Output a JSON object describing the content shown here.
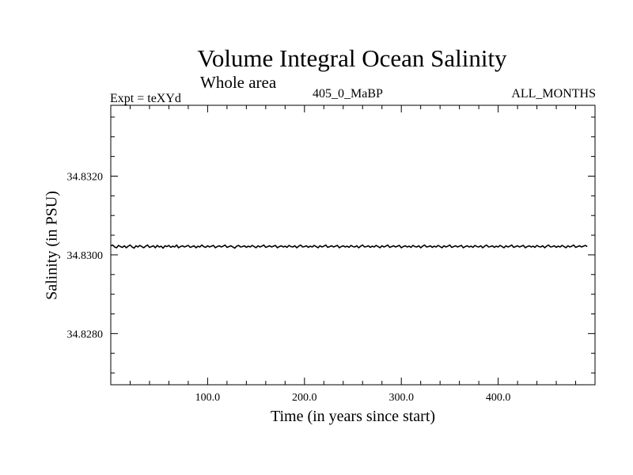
{
  "header": {
    "title": "Volume Integral Ocean Salinity",
    "subtitle": "Whole area",
    "expt": "Expt = teXYd",
    "center_label": "405_0_MaBP",
    "right_label": "ALL_MONTHS"
  },
  "chart_data": {
    "type": "line",
    "title": "Volume Integral Ocean Salinity",
    "xlabel": "Time (in years since start)",
    "ylabel": "Salinity (in PSU)",
    "xlim": [
      0,
      500
    ],
    "ylim": [
      34.8267,
      34.8338
    ],
    "x_ticks": [
      100,
      200,
      300,
      400
    ],
    "x_tick_labels": [
      "100.0",
      "200.0",
      "300.0",
      "400.0"
    ],
    "y_ticks": [
      34.828,
      34.83,
      34.832
    ],
    "y_tick_labels": [
      "34.8280",
      "34.8300",
      "34.8320"
    ],
    "grid": false,
    "series": [
      {
        "x_start": 0,
        "x_end": 500,
        "x_step": 2,
        "values": [
          34.83023,
          34.83025,
          34.8302,
          34.83018,
          34.83024,
          34.83021,
          34.83019,
          34.83023,
          34.83018,
          34.83022,
          34.83025,
          34.8302,
          34.83017,
          34.83023,
          34.8302,
          34.83024,
          34.83021,
          34.83018,
          34.83022,
          34.83025,
          34.83019,
          34.83021,
          34.83023,
          34.83018,
          34.83024,
          34.8302,
          34.83022,
          34.83017,
          34.83023,
          34.83021,
          34.83024,
          34.83019,
          34.83022,
          34.8302,
          34.83025,
          34.83018,
          34.83021,
          34.83023,
          34.8302,
          34.83022,
          34.83024,
          34.83019,
          34.83021,
          34.83023,
          34.83018,
          34.83022,
          34.8302,
          34.83025,
          34.83021,
          34.83019,
          34.83023,
          34.8302,
          34.83022,
          34.83024,
          34.83018,
          34.83021,
          34.83023,
          34.8302,
          34.83022,
          34.83025,
          34.83019,
          34.83021,
          34.83023,
          34.8302,
          34.83017,
          34.83022,
          34.83024,
          34.8302,
          34.83021,
          34.83023,
          34.83019,
          34.83022,
          34.8302,
          34.83024,
          34.83021,
          34.83018,
          34.83023,
          34.8302,
          34.83022,
          34.83025,
          34.83019,
          34.83021,
          34.83023,
          34.8302,
          34.83022,
          34.83024,
          34.83018,
          34.83021,
          34.83023,
          34.8302,
          34.83022,
          34.83019,
          34.83024,
          34.83021,
          34.8302,
          34.83023,
          34.83018,
          34.83022,
          34.83025,
          34.8302,
          34.83021,
          34.83023,
          34.83019,
          34.83022,
          34.8302,
          34.83024,
          34.83021,
          34.83018,
          34.83023,
          34.8302,
          34.83022,
          34.83025,
          34.83019,
          34.83021,
          34.83023,
          34.8302,
          34.83022,
          34.83024,
          34.83018,
          34.83021,
          34.83023,
          34.8302,
          34.83022,
          34.83019,
          34.83024,
          34.83021,
          34.8302,
          34.83023,
          34.83018,
          34.83022,
          34.83025,
          34.8302,
          34.83021,
          34.83023,
          34.83019,
          34.83022,
          34.8302,
          34.83024,
          34.83021,
          34.83018,
          34.83023,
          34.8302,
          34.83022,
          34.83025,
          34.83019,
          34.83021,
          34.83023,
          34.8302,
          34.83022,
          34.83024,
          34.83018,
          34.83021,
          34.83023,
          34.8302,
          34.83022,
          34.83019,
          34.83024,
          34.83021,
          34.8302,
          34.83023,
          34.83018,
          34.83022,
          34.83025,
          34.8302,
          34.83021,
          34.83023,
          34.83019,
          34.83022,
          34.8302,
          34.83024,
          34.83021,
          34.83018,
          34.83023,
          34.8302,
          34.83022,
          34.83025,
          34.83019,
          34.83021,
          34.83023,
          34.8302,
          34.83022,
          34.83024,
          34.83018,
          34.83021,
          34.83023,
          34.8302,
          34.83022,
          34.83019,
          34.83024,
          34.83021,
          34.8302,
          34.83023,
          34.83018,
          34.83022,
          34.83025,
          34.8302,
          34.83021,
          34.83023,
          34.83019,
          34.83022,
          34.8302,
          34.83024,
          34.83021,
          34.83018,
          34.83023,
          34.8302,
          34.83022,
          34.83025,
          34.83019,
          34.83021,
          34.83023,
          34.8302,
          34.83022,
          34.83024,
          34.83018,
          34.83021,
          34.83023,
          34.8302,
          34.83022,
          34.83019,
          34.83024,
          34.83021,
          34.8302,
          34.83023,
          34.83018,
          34.83022,
          34.83025,
          34.8302,
          34.83021,
          34.83023,
          34.83019,
          34.83022,
          34.8302,
          34.83024,
          34.83021,
          34.83018,
          34.83023,
          34.8302,
          34.83022,
          34.83025,
          34.83019,
          34.83021,
          34.83023,
          34.8302,
          34.83022,
          34.83024,
          34.83021
        ]
      }
    ]
  }
}
